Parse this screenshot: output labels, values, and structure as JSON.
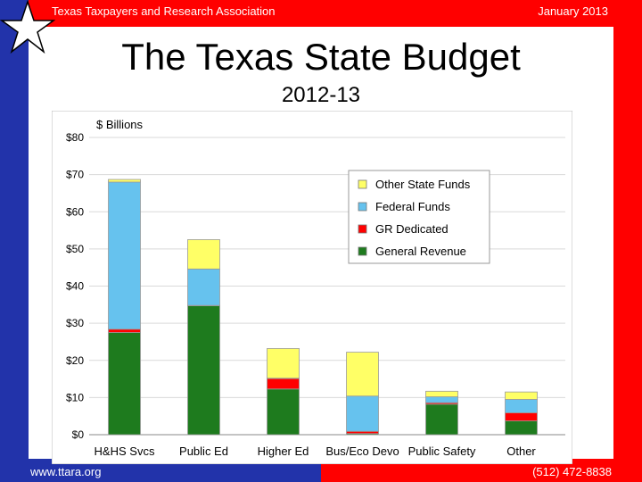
{
  "header": {
    "org": "Texas Taxpayers and Research Association",
    "date": "January 2013"
  },
  "footer": {
    "url": "www.ttara.org",
    "phone": "(512) 472-8838"
  },
  "title": "The Texas State Budget",
  "subtitle": "2012-13",
  "colors": {
    "blue_band": "#2233aa",
    "red_band": "#ff0000",
    "general_revenue": "#1e7b1e",
    "gr_dedicated": "#ff0000",
    "federal_funds": "#66c2ee",
    "other_state_funds": "#ffff66"
  },
  "chart_data": {
    "type": "bar",
    "stacked": true,
    "ylabel": "$ Billions",
    "ylim": [
      0,
      80
    ],
    "ytick_labels": [
      "$0",
      "$10",
      "$20",
      "$30",
      "$40",
      "$50",
      "$60",
      "$70",
      "$80"
    ],
    "yticks": [
      0,
      10,
      20,
      30,
      40,
      50,
      60,
      70,
      80
    ],
    "grid": true,
    "legend_position": "top-right",
    "categories": [
      "H&HS Svcs",
      "Public Ed",
      "Higher Ed",
      "Bus/Eco Devo",
      "Public Safety",
      "Other"
    ],
    "series": [
      {
        "name": "General Revenue",
        "color": "#1e7b1e",
        "values": [
          27.5,
          34.7,
          12.3,
          0.3,
          8.2,
          3.7
        ]
      },
      {
        "name": "GR Dedicated",
        "color": "#ff0000",
        "values": [
          0.9,
          0.1,
          2.8,
          0.6,
          0.4,
          2.2
        ]
      },
      {
        "name": "Federal Funds",
        "color": "#66c2ee",
        "values": [
          39.6,
          9.8,
          0.1,
          9.5,
          1.6,
          3.6
        ]
      },
      {
        "name": "Other State Funds",
        "color": "#ffff66",
        "values": [
          0.7,
          7.9,
          8.0,
          11.8,
          1.5,
          2.0
        ]
      }
    ],
    "legend_order": [
      "Other State Funds",
      "Federal Funds",
      "GR Dedicated",
      "General Revenue"
    ]
  }
}
